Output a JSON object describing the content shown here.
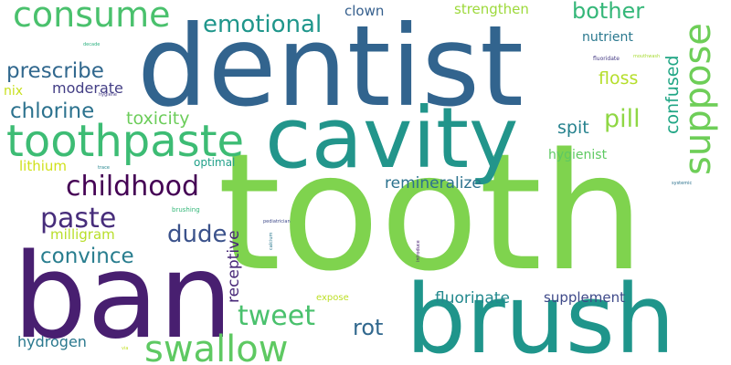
{
  "words": [
    {
      "text": "tooth",
      "color": "#7fd34e"
    },
    {
      "text": "dentist",
      "color": "#32648e"
    },
    {
      "text": "ban",
      "color": "#481f70"
    },
    {
      "text": "brush",
      "color": "#1f958b"
    },
    {
      "text": "cavity",
      "color": "#22958b"
    },
    {
      "text": "toothpaste",
      "color": "#3dbc74"
    },
    {
      "text": "consume",
      "color": "#4ac16d"
    },
    {
      "text": "swallow",
      "color": "#5ec962"
    },
    {
      "text": "suppose",
      "color": "#6ece58"
    },
    {
      "text": "childhood",
      "color": "#440154"
    },
    {
      "text": "paste",
      "color": "#472d7b"
    },
    {
      "text": "emotional",
      "color": "#1f968b"
    },
    {
      "text": "tweet",
      "color": "#4ac16d"
    },
    {
      "text": "bother",
      "color": "#35b779"
    },
    {
      "text": "chlorine",
      "color": "#2c728e"
    },
    {
      "text": "prescribe",
      "color": "#31688e"
    },
    {
      "text": "convince",
      "color": "#287d8e"
    },
    {
      "text": "dude",
      "color": "#3b528b"
    },
    {
      "text": "pill",
      "color": "#8fd744"
    },
    {
      "text": "confused",
      "color": "#21a685"
    },
    {
      "text": "toxicity",
      "color": "#6ccd5a"
    },
    {
      "text": "rot",
      "color": "#31688e"
    },
    {
      "text": "floss",
      "color": "#b5de2b"
    },
    {
      "text": "spit",
      "color": "#26828e"
    },
    {
      "text": "remineralize",
      "color": "#2c728e"
    },
    {
      "text": "fluorinate",
      "color": "#23898e"
    },
    {
      "text": "supplement",
      "color": "#3e4989"
    },
    {
      "text": "receptive",
      "color": "#482878"
    },
    {
      "text": "strengthen",
      "color": "#9dd93b"
    },
    {
      "text": "hydrogen",
      "color": "#2a788e"
    },
    {
      "text": "moderate",
      "color": "#433e85"
    },
    {
      "text": "clown",
      "color": "#355f8d"
    },
    {
      "text": "milligram",
      "color": "#b8de29"
    },
    {
      "text": "lithium",
      "color": "#d0e11c"
    },
    {
      "text": "nutrient",
      "color": "#2a788e"
    },
    {
      "text": "hygienist",
      "color": "#5ec962"
    },
    {
      "text": "nix",
      "color": "#c8e020"
    },
    {
      "text": "optimal",
      "color": "#1fa088"
    },
    {
      "text": "expose",
      "color": "#bddf26"
    },
    {
      "text": "brushing",
      "color": "#35b779"
    },
    {
      "text": "fluoridate",
      "color": "#443a83"
    },
    {
      "text": "mouthwash",
      "color": "#a8db34"
    },
    {
      "text": "decade",
      "color": "#2ab07f"
    },
    {
      "text": "hygiene",
      "color": "#443983"
    },
    {
      "text": "trace",
      "color": "#25858e"
    },
    {
      "text": "pediatrician",
      "color": "#3e4989"
    },
    {
      "text": "calcium",
      "color": "#2a788e"
    },
    {
      "text": "introduce",
      "color": "#482173"
    },
    {
      "text": "systemic",
      "color": "#2c728e"
    },
    {
      "text": "via",
      "color": "#c2df23"
    }
  ]
}
